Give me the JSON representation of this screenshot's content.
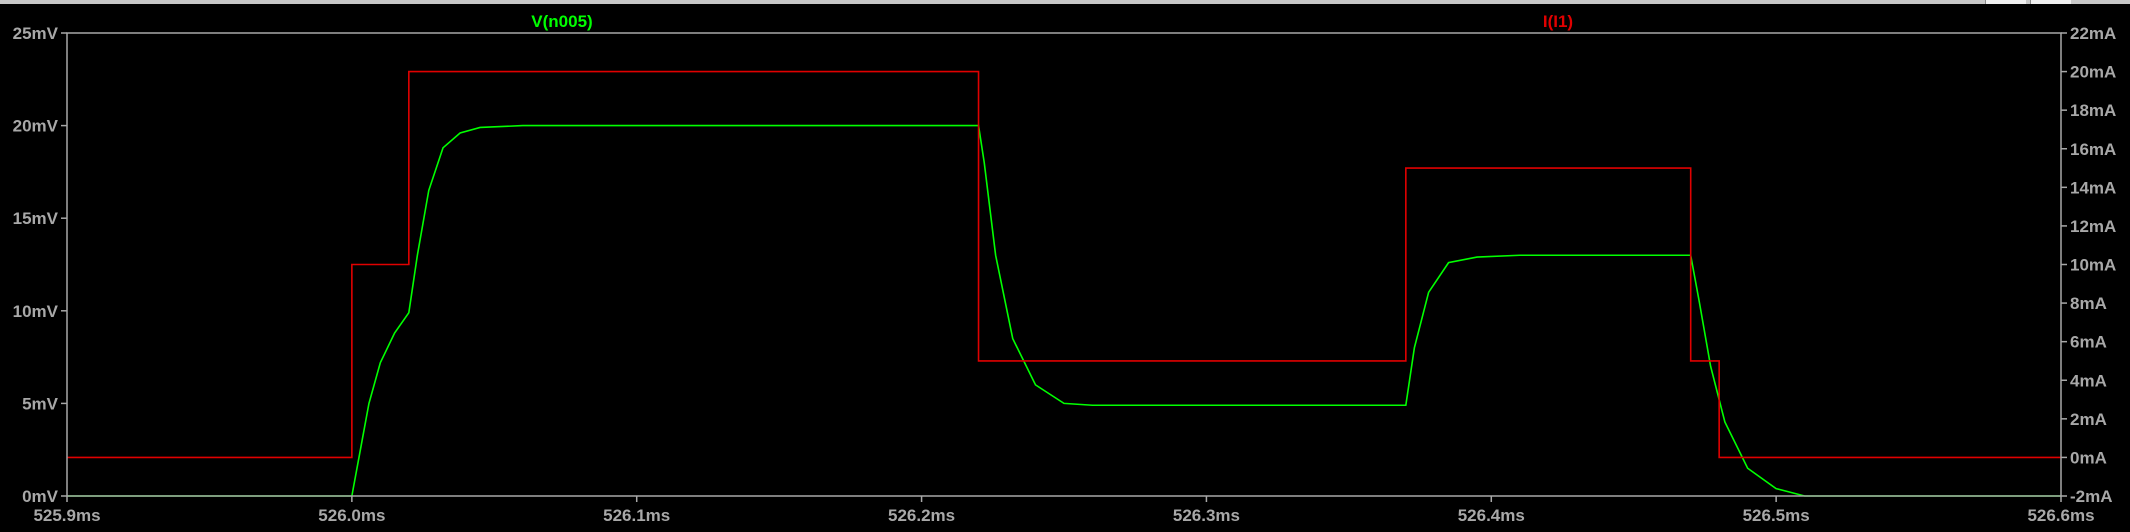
{
  "colors": {
    "background": "#000000",
    "frame": "#a8a8a8",
    "tick_text": "#a8a8a8",
    "voltage_trace": "#00ff00",
    "current_trace": "#e00000"
  },
  "window_buttons": [
    "minimize-icon",
    "maximize-icon"
  ],
  "chart_data": {
    "type": "line",
    "grid": false,
    "x": {
      "unit": "ms",
      "range": [
        525.9,
        526.6
      ],
      "ticks": [
        "525.9ms",
        "526.0ms",
        "526.1ms",
        "526.2ms",
        "526.3ms",
        "526.4ms",
        "526.5ms",
        "526.6ms"
      ]
    },
    "y_left": {
      "unit": "mV",
      "range": [
        0,
        25
      ],
      "ticks": [
        "0mV",
        "5mV",
        "10mV",
        "15mV",
        "20mV",
        "25mV"
      ]
    },
    "y_right": {
      "unit": "mA",
      "range": [
        -2,
        22
      ],
      "ticks": [
        "-2mA",
        "0mA",
        "2mA",
        "4mA",
        "6mA",
        "8mA",
        "10mA",
        "12mA",
        "14mA",
        "16mA",
        "18mA",
        "20mA",
        "22mA"
      ]
    },
    "series": [
      {
        "name": "V(n005)",
        "axis": "left",
        "color": "#00ff00",
        "x": [
          525.9,
          526.0,
          526.003,
          526.006,
          526.01,
          526.015,
          526.02,
          526.023,
          526.027,
          526.032,
          526.038,
          526.045,
          526.06,
          526.22,
          526.222,
          526.226,
          526.232,
          526.24,
          526.25,
          526.26,
          526.37,
          526.373,
          526.378,
          526.385,
          526.395,
          526.41,
          526.47,
          526.473,
          526.477,
          526.482,
          526.49,
          526.5,
          526.51,
          526.6
        ],
        "y": [
          0,
          0,
          2.5,
          5,
          7.2,
          8.8,
          9.9,
          13,
          16.5,
          18.8,
          19.6,
          19.9,
          20,
          20,
          18,
          13,
          8.5,
          6,
          5,
          4.9,
          4.9,
          8,
          11,
          12.6,
          12.9,
          13,
          13,
          10.5,
          7,
          4,
          1.5,
          0.4,
          0,
          0
        ]
      },
      {
        "name": "I(I1)",
        "axis": "right",
        "color": "#e00000",
        "x": [
          525.9,
          526.0,
          526.0,
          526.02,
          526.02,
          526.22,
          526.22,
          526.37,
          526.37,
          526.47,
          526.47,
          526.48,
          526.48,
          526.6
        ],
        "y": [
          0,
          0,
          10,
          10,
          20,
          20,
          5,
          5,
          15,
          15,
          5,
          5,
          0,
          0
        ]
      }
    ]
  }
}
